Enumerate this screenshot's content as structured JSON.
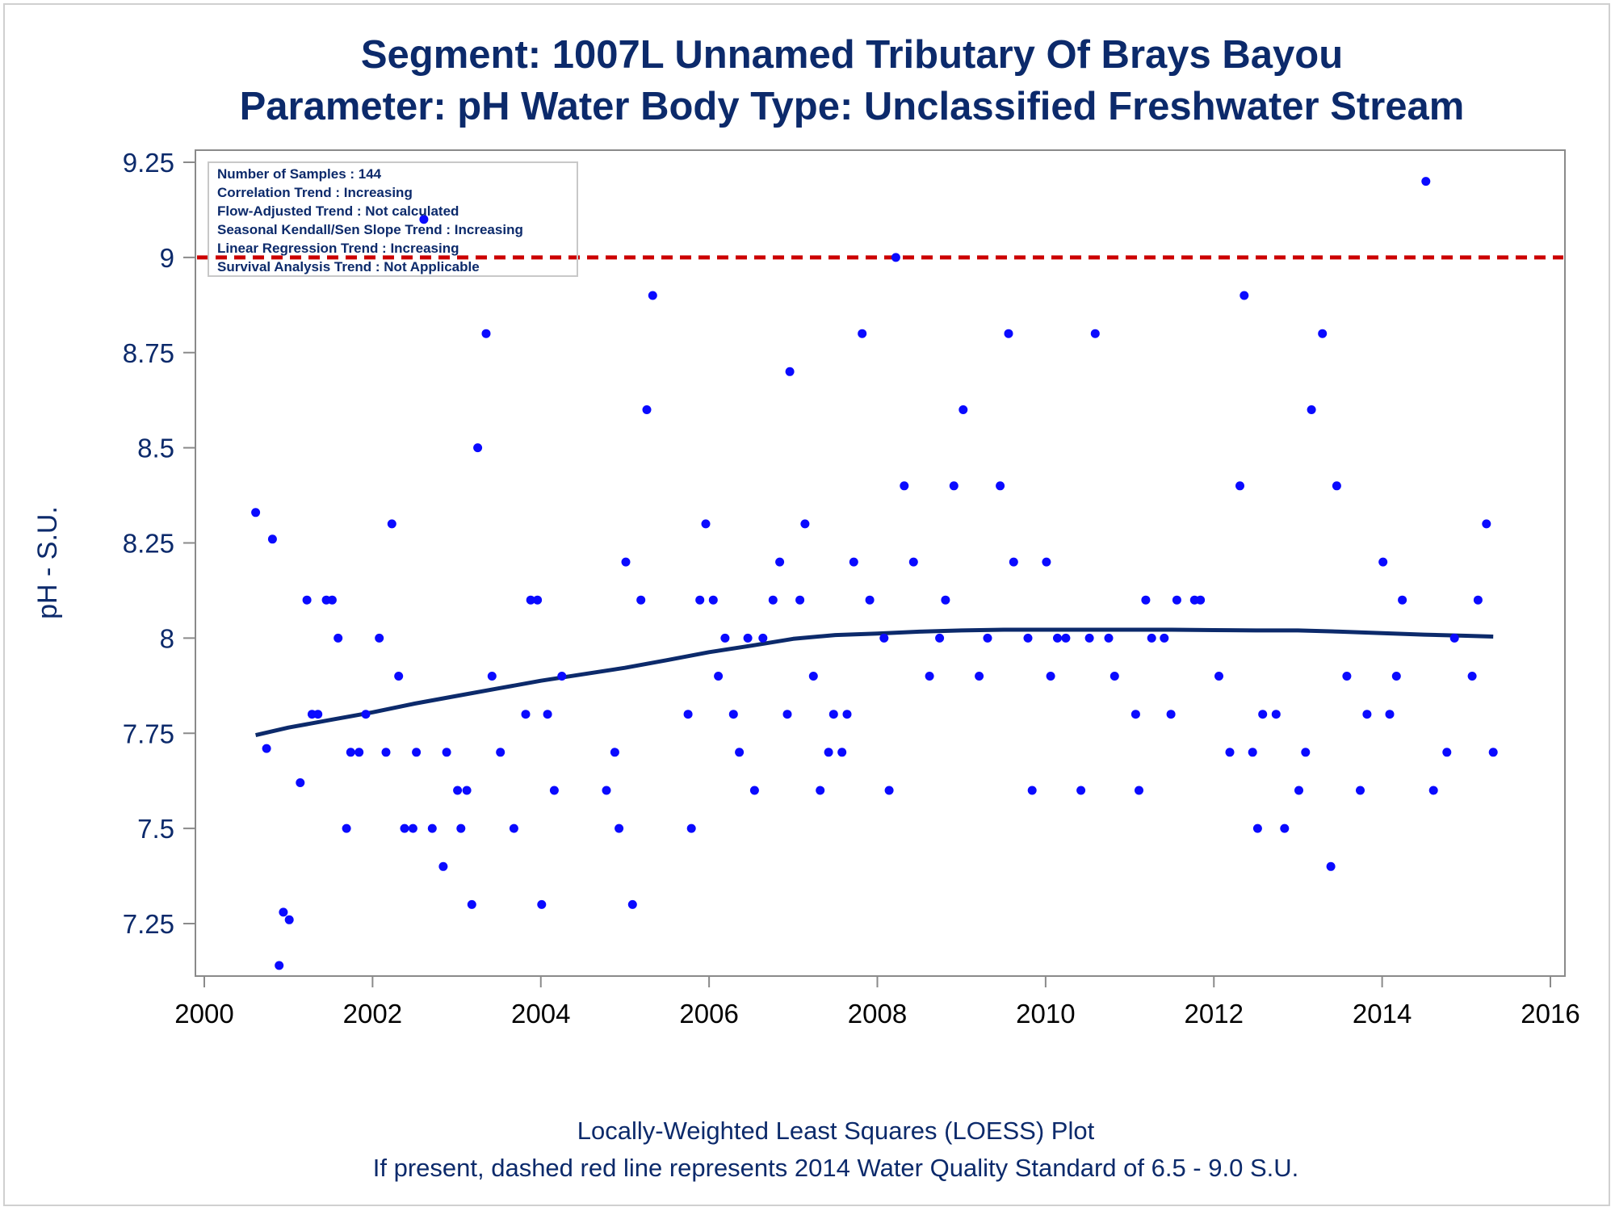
{
  "title": "Segment: 1007L  Unnamed Tributary Of Brays Bayou",
  "subtitle": "Parameter: pH   Water Body Type: Unclassified Freshwater Stream",
  "footnotes": [
    "Locally-Weighted Least Squares (LOESS) Plot",
    "If present, dashed red line represents 2014 Water Quality Standard of 6.5 - 9.0 S.U."
  ],
  "inset": [
    "Number of Samples : 144",
    "Correlation Trend : Increasing",
    "Flow-Adjusted Trend : Not calculated",
    "Seasonal Kendall/Sen Slope Trend : Increasing",
    "Linear Regression Trend : Increasing",
    "Survival Analysis Trend : Not Applicable"
  ],
  "colors": {
    "points": "#0a0aff",
    "loess": "#0c2a6b",
    "standard_line": "#cc0000",
    "text": "#0c2a6b",
    "axis": "#8a8a8a"
  },
  "chart_data": {
    "type": "scatter",
    "title": "Segment: 1007L  Unnamed Tributary Of Brays Bayou",
    "subtitle": "Parameter: pH   Water Body Type: Unclassified Freshwater Stream",
    "xlabel": "",
    "ylabel": "pH - S.U.",
    "xlim": [
      1999.85,
      2016.0
    ],
    "ylim": [
      7.12,
      9.31
    ],
    "xticks": [
      2000,
      2002,
      2004,
      2006,
      2008,
      2010,
      2012,
      2014,
      2016
    ],
    "yticks": [
      7.25,
      7.5,
      7.75,
      8,
      8.25,
      8.5,
      8.75,
      9,
      9.25
    ],
    "ytick_labels": [
      "7.25",
      "7.5",
      "7.75",
      "8",
      "8.25",
      "8.5",
      "8.75",
      "9",
      "9.25"
    ],
    "grid": false,
    "standard_line": {
      "y": 9.0,
      "style": "dashed"
    },
    "series": [
      {
        "type": "scatter",
        "points": [
          [
            2000.61,
            8.33
          ],
          [
            2000.74,
            7.71
          ],
          [
            2000.81,
            8.26
          ],
          [
            2000.89,
            7.14
          ],
          [
            2000.94,
            7.28
          ],
          [
            2001.01,
            7.26
          ],
          [
            2001.14,
            7.62
          ],
          [
            2001.22,
            8.1
          ],
          [
            2001.28,
            7.8
          ],
          [
            2001.35,
            7.8
          ],
          [
            2001.45,
            8.1
          ],
          [
            2001.52,
            8.1
          ],
          [
            2001.59,
            8.0
          ],
          [
            2001.69,
            7.5
          ],
          [
            2001.74,
            7.7
          ],
          [
            2001.84,
            7.7
          ],
          [
            2001.92,
            7.8
          ],
          [
            2002.08,
            8.0
          ],
          [
            2002.16,
            7.7
          ],
          [
            2002.23,
            8.3
          ],
          [
            2002.31,
            7.9
          ],
          [
            2002.38,
            7.5
          ],
          [
            2002.48,
            7.5
          ],
          [
            2002.52,
            7.7
          ],
          [
            2002.61,
            9.1
          ],
          [
            2002.71,
            7.5
          ],
          [
            2002.84,
            7.4
          ],
          [
            2002.88,
            7.7
          ],
          [
            2003.01,
            7.6
          ],
          [
            2003.05,
            7.5
          ],
          [
            2003.12,
            7.6
          ],
          [
            2003.18,
            7.3
          ],
          [
            2003.25,
            8.5
          ],
          [
            2003.35,
            8.8
          ],
          [
            2003.42,
            7.9
          ],
          [
            2003.52,
            7.7
          ],
          [
            2003.68,
            7.5
          ],
          [
            2003.82,
            7.8
          ],
          [
            2003.88,
            8.1
          ],
          [
            2003.96,
            8.1
          ],
          [
            2004.01,
            7.3
          ],
          [
            2004.08,
            7.8
          ],
          [
            2004.16,
            7.6
          ],
          [
            2004.25,
            7.9
          ],
          [
            2004.78,
            7.6
          ],
          [
            2004.88,
            7.7
          ],
          [
            2004.93,
            7.5
          ],
          [
            2005.01,
            8.2
          ],
          [
            2005.09,
            7.3
          ],
          [
            2005.19,
            8.1
          ],
          [
            2005.26,
            8.6
          ],
          [
            2005.33,
            8.9
          ],
          [
            2005.75,
            7.8
          ],
          [
            2005.79,
            7.5
          ],
          [
            2005.89,
            8.1
          ],
          [
            2005.96,
            8.3
          ],
          [
            2006.05,
            8.1
          ],
          [
            2006.11,
            7.9
          ],
          [
            2006.19,
            8.0
          ],
          [
            2006.29,
            7.8
          ],
          [
            2006.36,
            7.7
          ],
          [
            2006.46,
            8.0
          ],
          [
            2006.54,
            7.6
          ],
          [
            2006.64,
            8.0
          ],
          [
            2006.76,
            8.1
          ],
          [
            2006.84,
            8.2
          ],
          [
            2006.93,
            7.8
          ],
          [
            2006.96,
            8.7
          ],
          [
            2007.08,
            8.1
          ],
          [
            2007.14,
            8.3
          ],
          [
            2007.24,
            7.9
          ],
          [
            2007.32,
            7.6
          ],
          [
            2007.42,
            7.7
          ],
          [
            2007.48,
            7.8
          ],
          [
            2007.58,
            7.7
          ],
          [
            2007.64,
            7.8
          ],
          [
            2007.72,
            8.2
          ],
          [
            2007.82,
            8.8
          ],
          [
            2007.91,
            8.1
          ],
          [
            2008.08,
            8.0
          ],
          [
            2008.14,
            7.6
          ],
          [
            2008.22,
            9.0
          ],
          [
            2008.32,
            8.4
          ],
          [
            2008.43,
            8.2
          ],
          [
            2008.62,
            7.9
          ],
          [
            2008.74,
            8.0
          ],
          [
            2008.81,
            8.1
          ],
          [
            2008.91,
            8.4
          ],
          [
            2009.02,
            8.6
          ],
          [
            2009.21,
            7.9
          ],
          [
            2009.31,
            8.0
          ],
          [
            2009.46,
            8.4
          ],
          [
            2009.56,
            8.8
          ],
          [
            2009.62,
            8.2
          ],
          [
            2009.79,
            8.0
          ],
          [
            2009.84,
            7.6
          ],
          [
            2010.01,
            8.2
          ],
          [
            2010.06,
            7.9
          ],
          [
            2010.14,
            8.0
          ],
          [
            2010.24,
            8.0
          ],
          [
            2010.42,
            7.6
          ],
          [
            2010.52,
            8.0
          ],
          [
            2010.59,
            8.8
          ],
          [
            2010.75,
            8.0
          ],
          [
            2010.82,
            7.9
          ],
          [
            2011.07,
            7.8
          ],
          [
            2011.11,
            7.6
          ],
          [
            2011.19,
            8.1
          ],
          [
            2011.26,
            8.0
          ],
          [
            2011.41,
            8.0
          ],
          [
            2011.49,
            7.8
          ],
          [
            2011.56,
            8.1
          ],
          [
            2011.77,
            8.1
          ],
          [
            2011.84,
            8.1
          ],
          [
            2012.06,
            7.9
          ],
          [
            2012.19,
            7.7
          ],
          [
            2012.31,
            8.4
          ],
          [
            2012.36,
            8.9
          ],
          [
            2012.46,
            7.7
          ],
          [
            2012.52,
            7.5
          ],
          [
            2012.58,
            7.8
          ],
          [
            2012.74,
            7.8
          ],
          [
            2012.84,
            7.5
          ],
          [
            2013.01,
            7.6
          ],
          [
            2013.09,
            7.7
          ],
          [
            2013.16,
            8.6
          ],
          [
            2013.29,
            8.8
          ],
          [
            2013.39,
            7.4
          ],
          [
            2013.46,
            8.4
          ],
          [
            2013.58,
            7.9
          ],
          [
            2013.74,
            7.6
          ],
          [
            2013.82,
            7.8
          ],
          [
            2014.01,
            8.2
          ],
          [
            2014.09,
            7.8
          ],
          [
            2014.17,
            7.9
          ],
          [
            2014.24,
            8.1
          ],
          [
            2014.52,
            9.2
          ],
          [
            2014.61,
            7.6
          ],
          [
            2014.77,
            7.7
          ],
          [
            2014.86,
            8.0
          ],
          [
            2015.07,
            7.9
          ],
          [
            2015.14,
            8.1
          ],
          [
            2015.24,
            8.3
          ],
          [
            2015.32,
            7.7
          ]
        ]
      },
      {
        "type": "line",
        "points": [
          [
            2000.61,
            7.745
          ],
          [
            2001.0,
            7.765
          ],
          [
            2001.5,
            7.785
          ],
          [
            2002.0,
            7.805
          ],
          [
            2002.5,
            7.828
          ],
          [
            2003.0,
            7.848
          ],
          [
            2003.5,
            7.868
          ],
          [
            2004.0,
            7.888
          ],
          [
            2004.5,
            7.905
          ],
          [
            2005.0,
            7.922
          ],
          [
            2005.5,
            7.942
          ],
          [
            2006.0,
            7.963
          ],
          [
            2006.5,
            7.98
          ],
          [
            2007.0,
            7.998
          ],
          [
            2007.5,
            8.008
          ],
          [
            2008.0,
            8.012
          ],
          [
            2008.5,
            8.017
          ],
          [
            2009.0,
            8.02
          ],
          [
            2009.5,
            8.022
          ],
          [
            2010.0,
            8.022
          ],
          [
            2010.5,
            8.022
          ],
          [
            2011.0,
            8.022
          ],
          [
            2011.5,
            8.022
          ],
          [
            2012.0,
            8.021
          ],
          [
            2012.5,
            8.02
          ],
          [
            2013.0,
            8.02
          ],
          [
            2013.5,
            8.017
          ],
          [
            2014.0,
            8.013
          ],
          [
            2014.5,
            8.009
          ],
          [
            2015.0,
            8.006
          ],
          [
            2015.32,
            8.004
          ]
        ]
      }
    ]
  }
}
